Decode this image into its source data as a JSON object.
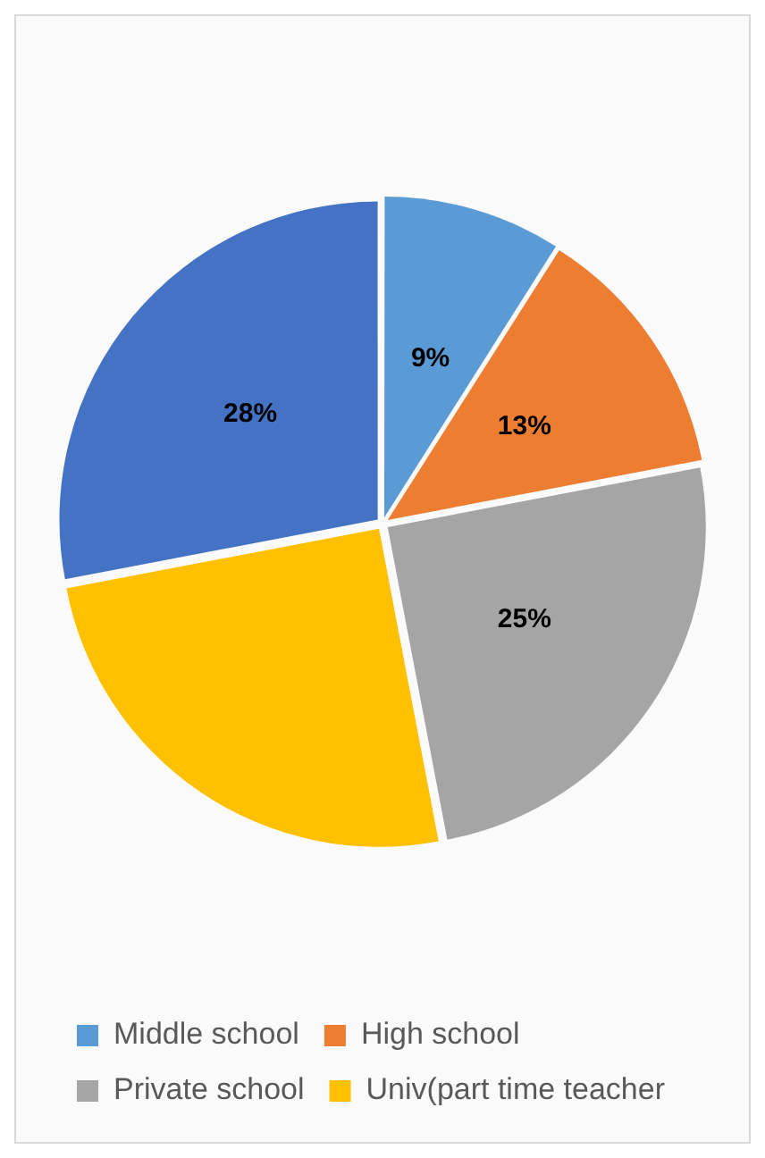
{
  "chart_data": {
    "type": "pie",
    "categories": [
      "Middle school",
      "High school",
      "Private school",
      "Univ(part time teacher",
      null
    ],
    "values": [
      9,
      13,
      25,
      25,
      28
    ],
    "colors": [
      "#5b9bd5",
      "#ed7d31",
      "#a5a5a5",
      "#ffc000",
      "#4472c4"
    ],
    "value_labels": [
      "9%",
      "13%",
      "25%",
      null,
      "28%"
    ],
    "legend": "bottom"
  }
}
